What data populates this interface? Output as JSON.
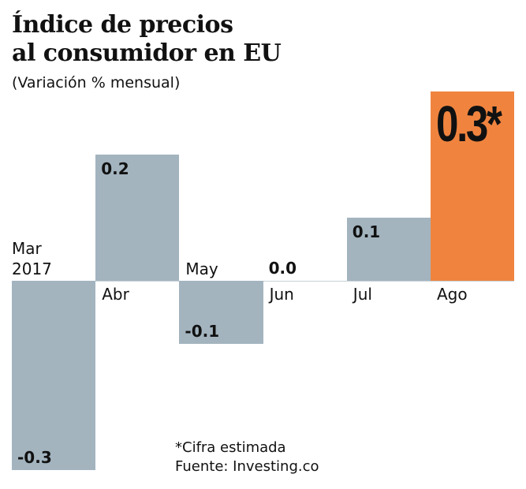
{
  "chart_data": {
    "type": "bar",
    "title_line1": "Índice de precios",
    "title_line2": "al consumidor en EU",
    "subtitle": "(Variación % mensual)",
    "categories": [
      "Mar 2017",
      "Abr",
      "May",
      "Jun",
      "Jul",
      "Ago"
    ],
    "values": [
      -0.3,
      0.2,
      -0.1,
      0.0,
      0.1,
      0.3
    ],
    "value_labels": [
      "-0.3",
      "0.2",
      "-0.1",
      "0.0",
      "0.1",
      "0.3*"
    ],
    "ylim": [
      -0.3,
      0.3
    ],
    "grid": false,
    "colors": {
      "default": "#a3b4bf",
      "highlight": "#f0843f"
    },
    "highlight_index": 5,
    "notes": [
      "*Cifra estimada",
      "Fuente: Investing.co"
    ]
  }
}
